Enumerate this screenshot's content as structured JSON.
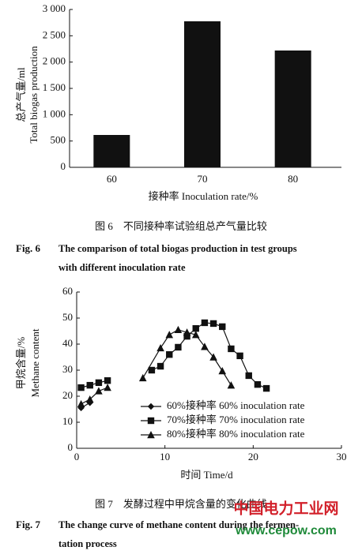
{
  "chart_data": [
    {
      "type": "bar",
      "ylabel": [
        "总产气量/ml",
        "Total biogas production"
      ],
      "xlabel": "接种率 Inoculation rate/%",
      "categories": [
        "60",
        "70",
        "80"
      ],
      "values": [
        615,
        2775,
        2220
      ],
      "color": "#111111",
      "ylim": [
        0,
        3000
      ],
      "yticks": [
        0,
        500,
        {
          "value": 1000,
          "label": "1 000"
        },
        {
          "value": 1500,
          "label": "1 500"
        },
        {
          "value": 2000,
          "label": "2 000"
        },
        {
          "value": 2500,
          "label": "2 500"
        },
        {
          "value": 3000,
          "label": "3 000"
        }
      ],
      "caption_cn": "图 6　不同接种率试验组总产气量比较",
      "caption_en": {
        "label": "Fig. 6",
        "lines": [
          "The comparison of total biogas production in test groups",
          "with different inoculation rate"
        ]
      }
    },
    {
      "type": "line",
      "ylabel": [
        "甲烷含量/%",
        "Methane content"
      ],
      "xlabel": "时间 Time/d",
      "xlim": [
        0,
        30
      ],
      "xticks": [
        0,
        10,
        20,
        30
      ],
      "ylim": [
        0,
        60
      ],
      "yticks": [
        0,
        10,
        20,
        30,
        40,
        50,
        60
      ],
      "series": [
        {
          "name": "60%接种率 60% inoculation rate",
          "color": "#111111",
          "marker": "diamond",
          "x": [
            0.5,
            1.5
          ],
          "values": [
            15.5,
            17.5
          ]
        },
        {
          "name": "70%接种率 70% inoculation rate",
          "color": "#111111",
          "marker": "square",
          "x": [
            0.5,
            1.5,
            2.5,
            3.5,
            6,
            8.5,
            9.5,
            10.5,
            11.5,
            12.5,
            13.5,
            14.5,
            15.5,
            16.5,
            17.5,
            18.5,
            19.5,
            20.5,
            21.5
          ],
          "values": [
            23.3,
            24.2,
            25.2,
            26,
            null,
            30,
            31.5,
            36,
            38.8,
            43,
            46,
            48.2,
            47.9,
            46.7,
            38.2,
            35.5,
            27.9,
            24.5,
            23
          ]
        },
        {
          "name": "80%接种率 80% inoculation rate",
          "color": "#111111",
          "marker": "triangle",
          "x": [
            0.5,
            1.5,
            2.5,
            3.5,
            6,
            7.5,
            9.5,
            10.5,
            11.5,
            12.5,
            13.5,
            14.5,
            15.5,
            16.5,
            17.5
          ],
          "values": [
            17,
            18.8,
            22,
            23.3,
            null,
            27,
            38.5,
            43.6,
            45.5,
            44.5,
            43.6,
            39,
            35,
            29.7,
            24.2
          ]
        }
      ],
      "caption_cn": "图 7　发酵过程中甲烷含量的变化曲线",
      "caption_en": {
        "label": "Fig. 7",
        "lines": [
          "The change curve of methane content during the fermen-",
          "tation process"
        ]
      }
    }
  ],
  "watermark": {
    "site_name": "中国电力工业网",
    "url": "www.cepow.com"
  }
}
